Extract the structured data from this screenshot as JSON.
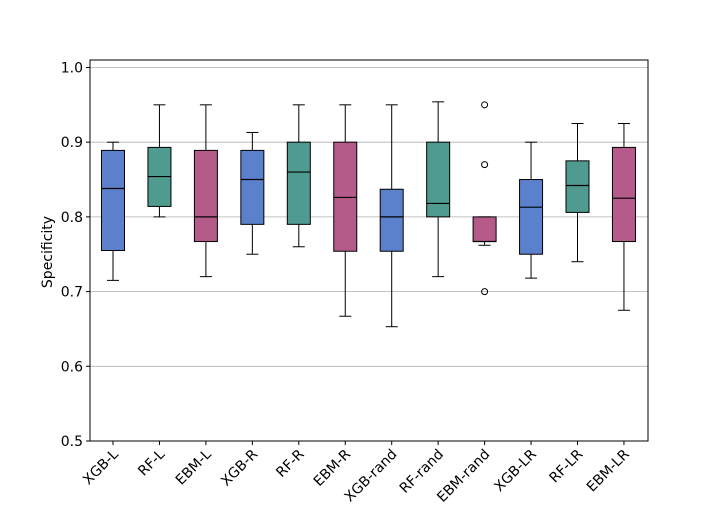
{
  "chart_data": {
    "type": "box",
    "title": "",
    "xlabel": "",
    "ylabel": "Specificity",
    "ylim": [
      0.5,
      1.01
    ],
    "yticks": [
      "0.5",
      "0.6",
      "0.7",
      "0.8",
      "0.9",
      "1.0"
    ],
    "grid": "horizontal",
    "categories": [
      "XGB-L",
      "RF-L",
      "EBM-L",
      "XGB-R",
      "RF-R",
      "EBM-R",
      "XGB-rand",
      "RF-rand",
      "EBM-rand",
      "XGB-LR",
      "RF-LR",
      "EBM-LR"
    ],
    "colors": {
      "xgb": "#5b80cc",
      "rf": "#4f9b8f",
      "ebm": "#b45b89",
      "grid": "#b0b0b0"
    },
    "boxes": [
      {
        "category": "XGB-L",
        "group": "xgb",
        "whisker_low": 0.715,
        "q1": 0.755,
        "median": 0.838,
        "q3": 0.889,
        "whisker_high": 0.9,
        "outliers": []
      },
      {
        "category": "RF-L",
        "group": "rf",
        "whisker_low": 0.8,
        "q1": 0.814,
        "median": 0.854,
        "q3": 0.893,
        "whisker_high": 0.95,
        "outliers": []
      },
      {
        "category": "EBM-L",
        "group": "ebm",
        "whisker_low": 0.72,
        "q1": 0.767,
        "median": 0.8,
        "q3": 0.889,
        "whisker_high": 0.95,
        "outliers": []
      },
      {
        "category": "XGB-R",
        "group": "xgb",
        "whisker_low": 0.75,
        "q1": 0.79,
        "median": 0.85,
        "q3": 0.889,
        "whisker_high": 0.913,
        "outliers": []
      },
      {
        "category": "RF-R",
        "group": "rf",
        "whisker_low": 0.76,
        "q1": 0.79,
        "median": 0.86,
        "q3": 0.9,
        "whisker_high": 0.95,
        "outliers": []
      },
      {
        "category": "EBM-R",
        "group": "ebm",
        "whisker_low": 0.667,
        "q1": 0.754,
        "median": 0.826,
        "q3": 0.9,
        "whisker_high": 0.95,
        "outliers": []
      },
      {
        "category": "XGB-rand",
        "group": "xgb",
        "whisker_low": 0.653,
        "q1": 0.754,
        "median": 0.8,
        "q3": 0.837,
        "whisker_high": 0.95,
        "outliers": []
      },
      {
        "category": "RF-rand",
        "group": "rf",
        "whisker_low": 0.72,
        "q1": 0.8,
        "median": 0.818,
        "q3": 0.9,
        "whisker_high": 0.954,
        "outliers": []
      },
      {
        "category": "EBM-rand",
        "group": "ebm",
        "whisker_low": 0.762,
        "q1": 0.767,
        "median": 0.767,
        "q3": 0.8,
        "whisker_high": 0.8,
        "outliers": [
          0.95,
          0.87,
          0.7
        ]
      },
      {
        "category": "XGB-LR",
        "group": "xgb",
        "whisker_low": 0.718,
        "q1": 0.75,
        "median": 0.813,
        "q3": 0.85,
        "whisker_high": 0.9,
        "outliers": []
      },
      {
        "category": "RF-LR",
        "group": "rf",
        "whisker_low": 0.74,
        "q1": 0.806,
        "median": 0.842,
        "q3": 0.875,
        "whisker_high": 0.925,
        "outliers": []
      },
      {
        "category": "EBM-LR",
        "group": "ebm",
        "whisker_low": 0.675,
        "q1": 0.767,
        "median": 0.825,
        "q3": 0.893,
        "whisker_high": 0.925,
        "outliers": []
      }
    ]
  }
}
